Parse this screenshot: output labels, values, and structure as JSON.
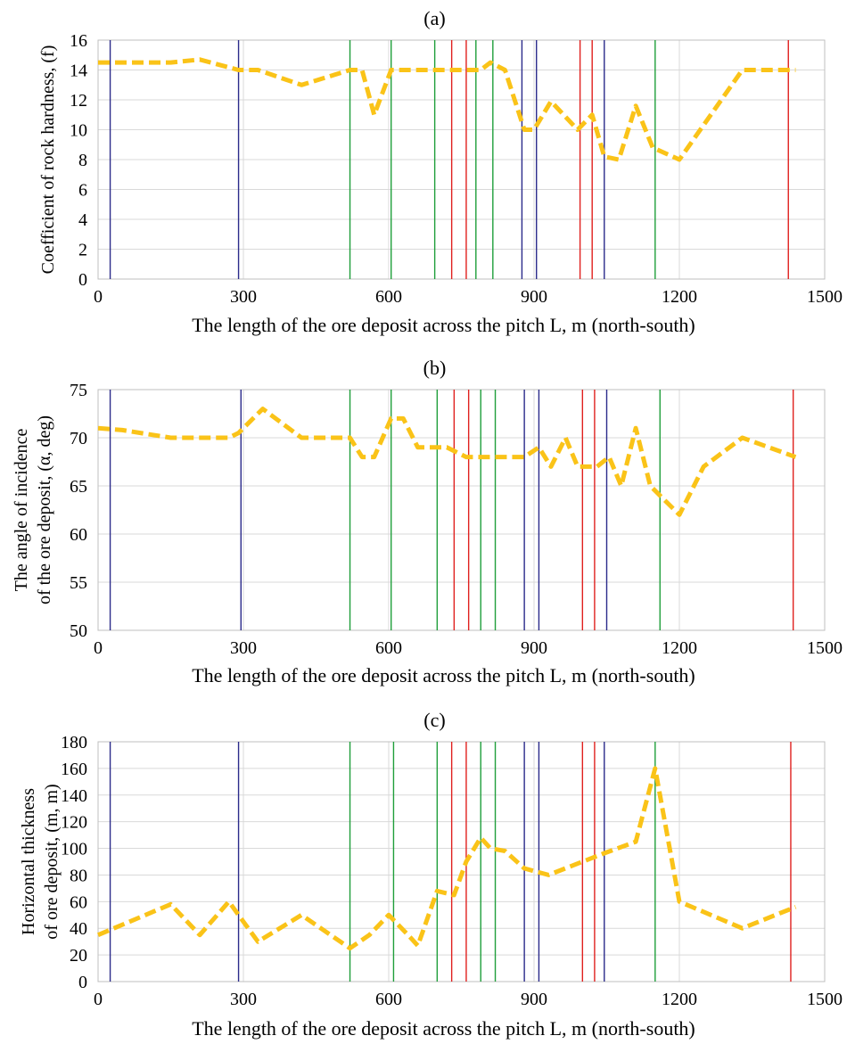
{
  "colors": {
    "series": "#fac318",
    "blue": "#2b2b8a",
    "green": "#1f9e3a",
    "red": "#e0201e",
    "grid": "#d9d9d9"
  },
  "chart_data": [
    {
      "type": "line",
      "panel_label": "(a)",
      "title": "",
      "xlabel": "The length of the ore deposit across the pitch  L, m (north-south)",
      "ylabel": "Coefficient of rock hardness, (f)",
      "xlim": [
        0,
        1500
      ],
      "ylim": [
        0,
        16
      ],
      "x_ticks": [
        0,
        300,
        600,
        900,
        1200,
        1500
      ],
      "y_ticks": [
        0,
        2,
        4,
        6,
        8,
        10,
        12,
        14,
        16
      ],
      "grid": true,
      "vlines": {
        "blue": [
          25,
          290,
          875,
          905,
          1045
        ],
        "green": [
          520,
          605,
          695,
          780,
          815,
          1150
        ],
        "red": [
          730,
          760,
          995,
          1020,
          1425
        ]
      },
      "series": [
        {
          "x": [
            0,
            30,
            150,
            210,
            290,
            330,
            420,
            520,
            545,
            570,
            605,
            640,
            700,
            760,
            790,
            810,
            840,
            880,
            900,
            935,
            990,
            1020,
            1045,
            1075,
            1110,
            1145,
            1200,
            1330,
            1440
          ],
          "values": [
            14.5,
            14.5,
            14.5,
            14.7,
            14,
            14,
            13,
            14,
            14,
            11,
            14,
            14,
            14,
            14,
            14,
            14.5,
            14,
            10,
            10,
            11.9,
            10,
            11,
            8.2,
            8,
            11.6,
            8.8,
            8,
            14,
            14
          ]
        }
      ]
    },
    {
      "type": "line",
      "panel_label": "(b)",
      "title": "",
      "xlabel": "The length of the ore deposit across the pitch  L, m (north-south)",
      "ylabel": "The angle of incidence of the ore deposit, (α, deg)",
      "ylabel_lines": [
        "The angle of incidence",
        "of the ore deposit, (α, deg)"
      ],
      "xlim": [
        0,
        1500
      ],
      "ylim": [
        50,
        75
      ],
      "x_ticks": [
        0,
        300,
        600,
        900,
        1200,
        1500
      ],
      "y_ticks": [
        50,
        55,
        60,
        65,
        70,
        75
      ],
      "grid": true,
      "vlines": {
        "blue": [
          25,
          295,
          880,
          910,
          1050
        ],
        "green": [
          520,
          605,
          700,
          790,
          820,
          1160
        ],
        "red": [
          735,
          765,
          1000,
          1025,
          1435
        ]
      },
      "series": [
        {
          "x": [
            0,
            50,
            150,
            200,
            270,
            290,
            340,
            420,
            500,
            520,
            545,
            570,
            605,
            630,
            660,
            720,
            760,
            820,
            860,
            880,
            910,
            935,
            965,
            990,
            1030,
            1055,
            1080,
            1110,
            1140,
            1200,
            1250,
            1330,
            1440
          ],
          "values": [
            71,
            70.8,
            70,
            70,
            70,
            70.5,
            73,
            70,
            70,
            70,
            68,
            68,
            72,
            72,
            69,
            69,
            68,
            68,
            68,
            68,
            69,
            67,
            70,
            67,
            67,
            68,
            65,
            71,
            65,
            62,
            67,
            70,
            68
          ]
        }
      ]
    },
    {
      "type": "line",
      "panel_label": "(c)",
      "title": "",
      "xlabel": "The length of the ore deposit across the pitch  L, m (north-south)",
      "ylabel": "Horizontal thickness of ore deposit, (m, m)",
      "ylabel_lines": [
        "Horizontal thickness",
        "of ore deposit, (m, m)"
      ],
      "xlim": [
        0,
        1500
      ],
      "ylim": [
        0,
        180
      ],
      "x_ticks": [
        0,
        300,
        600,
        900,
        1200,
        1500
      ],
      "y_ticks": [
        0,
        20,
        40,
        60,
        80,
        100,
        120,
        140,
        160,
        180
      ],
      "grid": true,
      "vlines": {
        "blue": [
          25,
          290,
          880,
          910,
          1045
        ],
        "green": [
          520,
          610,
          700,
          790,
          820,
          1150
        ],
        "red": [
          730,
          760,
          1000,
          1025,
          1430
        ]
      },
      "series": [
        {
          "x": [
            0,
            150,
            210,
            270,
            300,
            330,
            420,
            520,
            560,
            600,
            640,
            660,
            700,
            735,
            760,
            790,
            810,
            840,
            880,
            930,
            1000,
            1050,
            1110,
            1150,
            1200,
            1330,
            1440
          ],
          "values": [
            35,
            58,
            35,
            60,
            45,
            30,
            50,
            25,
            35,
            50,
            35,
            27,
            68,
            65,
            90,
            108,
            100,
            98,
            85,
            80,
            90,
            97,
            105,
            160,
            60,
            40,
            56
          ]
        }
      ]
    }
  ]
}
